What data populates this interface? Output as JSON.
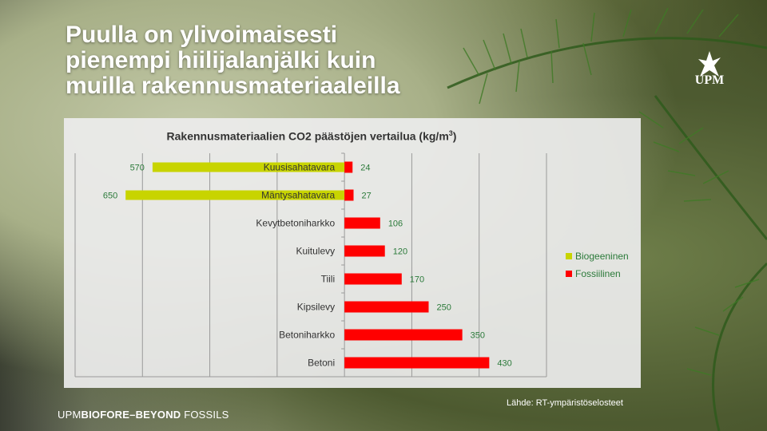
{
  "title": "Puulla on ylivoimaisesti pienempi hiilijalanjälki kuin muilla rakennusmateriaaleilla",
  "logo": {
    "text": "UPM",
    "icon": "griffin-icon"
  },
  "footer": {
    "brand": "UPM",
    "bold": "BIOFORE",
    "sep": "–",
    "tail_bold": "BEYOND",
    "tail": " FOSSILS"
  },
  "source": "Lähde: RT-ympäristöselosteet",
  "colors": {
    "biogenic": "#c8d400",
    "fossil": "#ff0000",
    "label": "#2b7a3a"
  },
  "chart_data": {
    "type": "bar",
    "orientation": "horizontal",
    "title": "Rakennusmateriaalien CO2 päästöjen vertailua (kg/m³)",
    "categories": [
      "Kuusisahatavara",
      "Mäntysahatavara",
      "Kevytbetoniharkko",
      "Kuitulevy",
      "Tiili",
      "Kipsilevy",
      "Betoniharkko",
      "Betoni"
    ],
    "series": [
      {
        "name": "Biogeeninen",
        "values": [
          570,
          650,
          null,
          null,
          null,
          null,
          null,
          null
        ],
        "direction": "negative"
      },
      {
        "name": "Fossiilinen",
        "values": [
          24,
          27,
          106,
          120,
          170,
          250,
          350,
          430
        ]
      }
    ],
    "xlim": [
      -800,
      600
    ],
    "grid": true,
    "legend": "right"
  }
}
